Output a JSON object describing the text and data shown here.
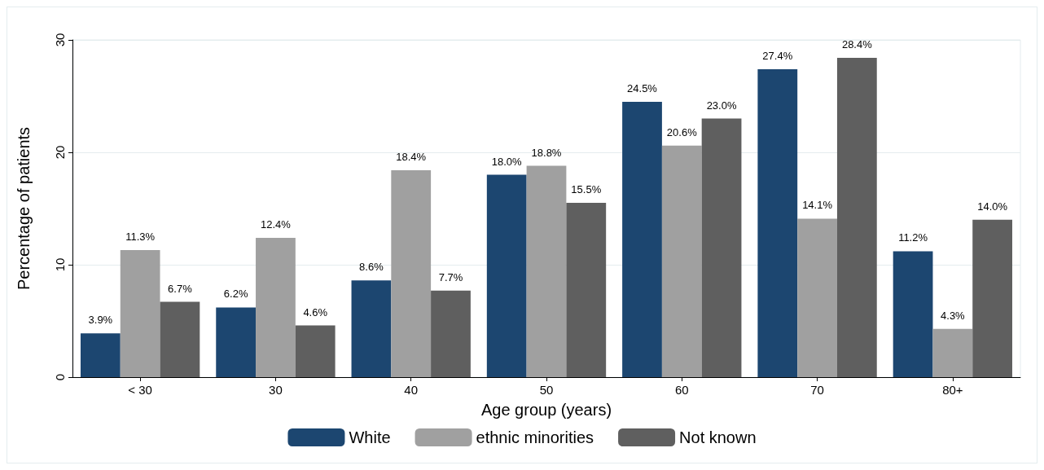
{
  "chart_data": {
    "type": "bar",
    "xlabel": "Age group (years)",
    "ylabel": "Percentage of patients",
    "categories": [
      "< 30",
      "30",
      "40",
      "50",
      "60",
      "70",
      "80+"
    ],
    "series": [
      {
        "name": "White",
        "color": "#1c4670",
        "values": [
          3.9,
          6.2,
          8.6,
          18.0,
          24.5,
          27.4,
          11.2
        ],
        "value_labels": [
          "3.9%",
          "6.2%",
          "8.6%",
          "18.0%",
          "24.5%",
          "27.4%",
          "11.2%"
        ]
      },
      {
        "name": "ethnic minorities",
        "color": "#a0a0a0",
        "values": [
          11.3,
          12.4,
          18.4,
          18.8,
          20.6,
          14.1,
          4.3
        ],
        "value_labels": [
          "11.3%",
          "12.4%",
          "18.4%",
          "18.8%",
          "20.6%",
          "14.1%",
          "4.3%"
        ]
      },
      {
        "name": "Not known",
        "color": "#5f5f5f",
        "values": [
          6.7,
          4.6,
          7.7,
          15.5,
          23.0,
          28.4,
          14.0
        ],
        "value_labels": [
          "6.7%",
          "4.6%",
          "7.7%",
          "15.5%",
          "23.0%",
          "28.4%",
          "14.0%"
        ]
      }
    ],
    "ylim": [
      0,
      30
    ],
    "yticks": [
      0,
      10,
      20,
      30
    ],
    "grid": "y",
    "legend": "bottom"
  }
}
